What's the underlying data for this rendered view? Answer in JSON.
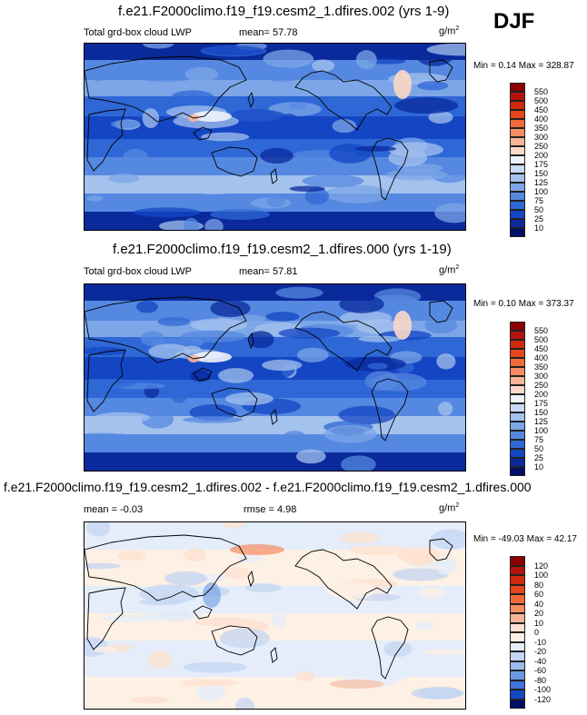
{
  "header": {
    "season": "DJF"
  },
  "units": "g/m",
  "units_exp": "2",
  "panels": [
    {
      "title": "f.e21.F2000climo.f19_f19.cesm2_1.dfires.002 (yrs 1-9)",
      "left_label": "Total grd-box cloud LWP",
      "stat_text": "mean=  57.78",
      "minmax_text": "Min =   0.14 Max = 328.87",
      "scheme": "abs"
    },
    {
      "title": "f.e21.F2000climo.f19_f19.cesm2_1.dfires.000 (yrs 1-19)",
      "left_label": "Total grd-box cloud LWP",
      "stat_text": "mean=  57.81",
      "minmax_text": "Min =   0.10 Max = 373.37",
      "scheme": "abs"
    },
    {
      "title": "f.e21.F2000climo.f19_f19.cesm2_1.dfires.002 - f.e21.F2000climo.f19_f19.cesm2_1.dfires.000",
      "left_label": "mean = -0.03",
      "stat_text": "rmse =   4.98",
      "minmax_text": "Min = -49.03 Max =  42.17",
      "scheme": "diff"
    }
  ],
  "colorbars": {
    "abs": {
      "levels": [
        "550",
        "500",
        "450",
        "400",
        "350",
        "300",
        "250",
        "200",
        "175",
        "150",
        "125",
        "100",
        "75",
        "50",
        "25",
        "10"
      ],
      "colors": [
        "#8b0000",
        "#b3130f",
        "#d0290f",
        "#e5461d",
        "#f2693a",
        "#f58c63",
        "#f9b497",
        "#fcd8c6",
        "#eef2fa",
        "#c9daf4",
        "#a4c2ee",
        "#7ca6e7",
        "#5588e0",
        "#2f68d6",
        "#1446c4",
        "#0a2a9c",
        "#020d66"
      ]
    },
    "diff": {
      "levels": [
        "120",
        "100",
        "80",
        "60",
        "40",
        "20",
        "10",
        "0",
        "-10",
        "-20",
        "-40",
        "-60",
        "-80",
        "-100",
        "-120"
      ],
      "colors": [
        "#8b0000",
        "#b3130f",
        "#d0290f",
        "#e5461d",
        "#f2693a",
        "#f58c63",
        "#f9b497",
        "#fde0cf",
        "#fdf0e4",
        "#e4edf9",
        "#c4d6f2",
        "#9bbbeb",
        "#6b99e2",
        "#3d72d8",
        "#1646c0",
        "#020d66"
      ]
    }
  },
  "chart_data": [
    {
      "type": "heatmap",
      "title": "f.e21.F2000climo.f19_f19.cesm2_1.dfires.002 (yrs 1-9)",
      "variable": "Total grd-box cloud LWP",
      "units": "g/m2",
      "season": "DJF",
      "mean": 57.78,
      "min": 0.14,
      "max": 328.87,
      "contour_levels": [
        10,
        25,
        50,
        75,
        100,
        125,
        150,
        175,
        200,
        250,
        300,
        350,
        400,
        450,
        500,
        550
      ]
    },
    {
      "type": "heatmap",
      "title": "f.e21.F2000climo.f19_f19.cesm2_1.dfires.000 (yrs 1-19)",
      "variable": "Total grd-box cloud LWP",
      "units": "g/m2",
      "season": "DJF",
      "mean": 57.81,
      "min": 0.1,
      "max": 373.37,
      "contour_levels": [
        10,
        25,
        50,
        75,
        100,
        125,
        150,
        175,
        200,
        250,
        300,
        350,
        400,
        450,
        500,
        550
      ]
    },
    {
      "type": "heatmap",
      "title": "f.e21.F2000climo.f19_f19.cesm2_1.dfires.002 - f.e21.F2000climo.f19_f19.cesm2_1.dfires.000",
      "units": "g/m2",
      "season": "DJF",
      "mean": -0.03,
      "rmse": 4.98,
      "min": -49.03,
      "max": 42.17,
      "contour_levels": [
        -120,
        -100,
        -80,
        -60,
        -40,
        -20,
        -10,
        0,
        10,
        20,
        40,
        60,
        80,
        100,
        120
      ]
    }
  ]
}
